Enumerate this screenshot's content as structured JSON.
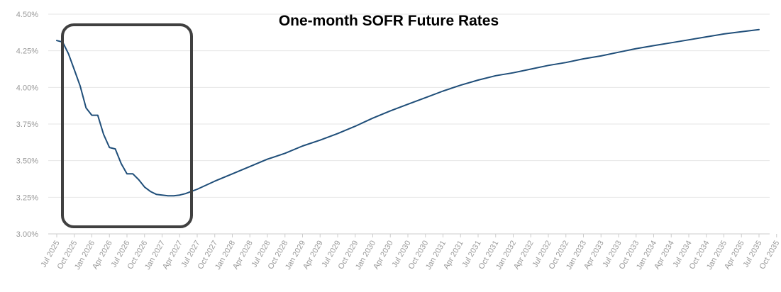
{
  "chart_data": {
    "type": "line",
    "title": "One-month SOFR Future Rates",
    "xlabel": "",
    "ylabel": "",
    "ylim": [
      3.0,
      4.5
    ],
    "y_ticks": [
      "3.00%",
      "3.25%",
      "3.50%",
      "3.75%",
      "4.00%",
      "4.25%",
      "4.50%"
    ],
    "x_ticks": [
      "Jul 2025",
      "Oct 2025",
      "Jan 2026",
      "Apr 2026",
      "Jul 2026",
      "Oct 2026",
      "Jan 2027",
      "Apr 2027",
      "Jul 2027",
      "Oct 2027",
      "Jan 2028",
      "Apr 2028",
      "Jul 2028",
      "Oct 2028",
      "Jan 2029",
      "Apr 2029",
      "Jul 2029",
      "Oct 2029",
      "Jan 2030",
      "Apr 2030",
      "Jul 2030",
      "Oct 2030",
      "Jan 2031",
      "Apr 2031",
      "Jul 2031",
      "Oct 2031",
      "Jan 2032",
      "Apr 2032",
      "Jul 2032",
      "Oct 2032",
      "Jan 2033",
      "Apr 2033",
      "Jul 2033",
      "Oct 2033",
      "Jan 2034",
      "Apr 2034",
      "Jul 2034",
      "Oct 2034",
      "Jan 2035",
      "Apr 2035",
      "Jul 2035",
      "Oct 2035"
    ],
    "grid": true,
    "line_color": "#1f4e79",
    "highlight_box_color": "#404040",
    "series": [
      {
        "x": [
          "Jul 2025",
          "Aug 2025",
          "Sep 2025",
          "Oct 2025",
          "Nov 2025",
          "Dec 2025",
          "Jan 2026",
          "Feb 2026",
          "Mar 2026",
          "Apr 2026",
          "May 2026",
          "Jun 2026",
          "Jul 2026",
          "Aug 2026",
          "Sep 2026",
          "Oct 2026",
          "Nov 2026",
          "Dec 2026",
          "Jan 2027",
          "Feb 2027",
          "Mar 2027",
          "Apr 2027",
          "May 2027",
          "Jun 2027",
          "Jul 2027",
          "Oct 2027",
          "Jan 2028",
          "Apr 2028",
          "Jul 2028",
          "Oct 2028",
          "Jan 2029",
          "Apr 2029",
          "Jul 2029",
          "Oct 2029",
          "Jan 2030",
          "Apr 2030",
          "Jul 2030",
          "Oct 2030",
          "Jan 2031",
          "Apr 2031",
          "Jul 2031",
          "Oct 2031",
          "Jan 2032",
          "Apr 2032",
          "Jul 2032",
          "Oct 2032",
          "Jan 2033",
          "Apr 2033",
          "Jul 2033",
          "Oct 2033",
          "Jan 2034",
          "Apr 2034",
          "Jul 2034",
          "Oct 2034",
          "Jan 2035",
          "Apr 2035",
          "Jul 2035"
        ],
        "values": [
          4.32,
          4.31,
          4.23,
          4.12,
          4.01,
          3.86,
          3.81,
          3.81,
          3.68,
          3.59,
          3.58,
          3.48,
          3.41,
          3.41,
          3.37,
          3.32,
          3.29,
          3.27,
          3.265,
          3.26,
          3.26,
          3.265,
          3.275,
          3.29,
          3.305,
          3.36,
          3.41,
          3.46,
          3.51,
          3.55,
          3.6,
          3.64,
          3.685,
          3.735,
          3.79,
          3.84,
          3.885,
          3.93,
          3.975,
          4.015,
          4.05,
          4.08,
          4.1,
          4.125,
          4.15,
          4.17,
          4.195,
          4.215,
          4.24,
          4.265,
          4.285,
          4.305,
          4.325,
          4.345,
          4.365,
          4.38,
          4.395
        ]
      }
    ]
  }
}
